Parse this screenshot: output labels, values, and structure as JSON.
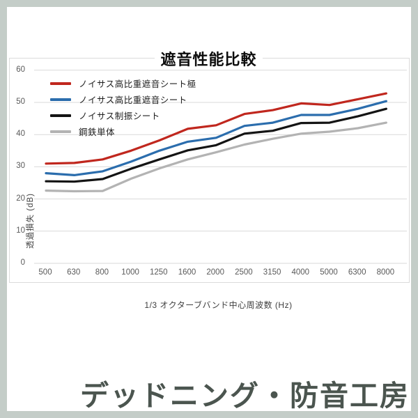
{
  "page": {
    "footer_brand": "デッドニング・防音工房"
  },
  "colors": {
    "page_background": "#c4cdc8",
    "panel_background": "#ffffff",
    "card_border": "#dbdbdb",
    "gridline": "#d9d9d9",
    "tick_text": "#595959",
    "axis_label_text": "#404040",
    "title_text": "#0d0d0d",
    "footer_text": "#4b554f"
  },
  "chart_data": {
    "type": "line",
    "title": "遮音性能比較",
    "xlabel": "1/3 オクターブバンド中心周波数 (Hz)",
    "ylabel": "透過損失 (dB)",
    "ylim": [
      0,
      60
    ],
    "yticks": [
      0,
      10,
      20,
      30,
      40,
      50,
      60
    ],
    "grid": true,
    "legend_position": "top-left",
    "categories": [
      "500",
      "630",
      "800",
      "1000",
      "1250",
      "1600",
      "2000",
      "2500",
      "3150",
      "4000",
      "5000",
      "6300",
      "8000"
    ],
    "series": [
      {
        "key": "kiwami",
        "name": "ノイサス高比重遮音シート極",
        "color": "#c0271e",
        "values": [
          31,
          31.2,
          32.3,
          35,
          38.2,
          41.8,
          42.9,
          46.4,
          47.6,
          49.7,
          49.2,
          51,
          52.8
        ]
      },
      {
        "key": "standard",
        "name": "ノイサス高比重遮音シート",
        "color": "#2b6dad",
        "values": [
          28,
          27.4,
          28.6,
          31.6,
          35,
          37.8,
          39,
          42.7,
          43.7,
          46.1,
          46.1,
          48,
          50.4
        ]
      },
      {
        "key": "damping",
        "name": "ノイサス制振シート",
        "color": "#141414",
        "values": [
          25.5,
          25.4,
          26.2,
          29.4,
          32.3,
          35.1,
          36.7,
          40.3,
          41.2,
          43.6,
          43.7,
          45.7,
          48
        ]
      },
      {
        "key": "steel",
        "name": "鋼鉄単体",
        "color": "#b3b3b3",
        "values": [
          22.6,
          22.4,
          22.5,
          26.3,
          29.5,
          32.3,
          34.5,
          36.9,
          38.7,
          40.3,
          40.9,
          42,
          43.7
        ]
      }
    ]
  }
}
